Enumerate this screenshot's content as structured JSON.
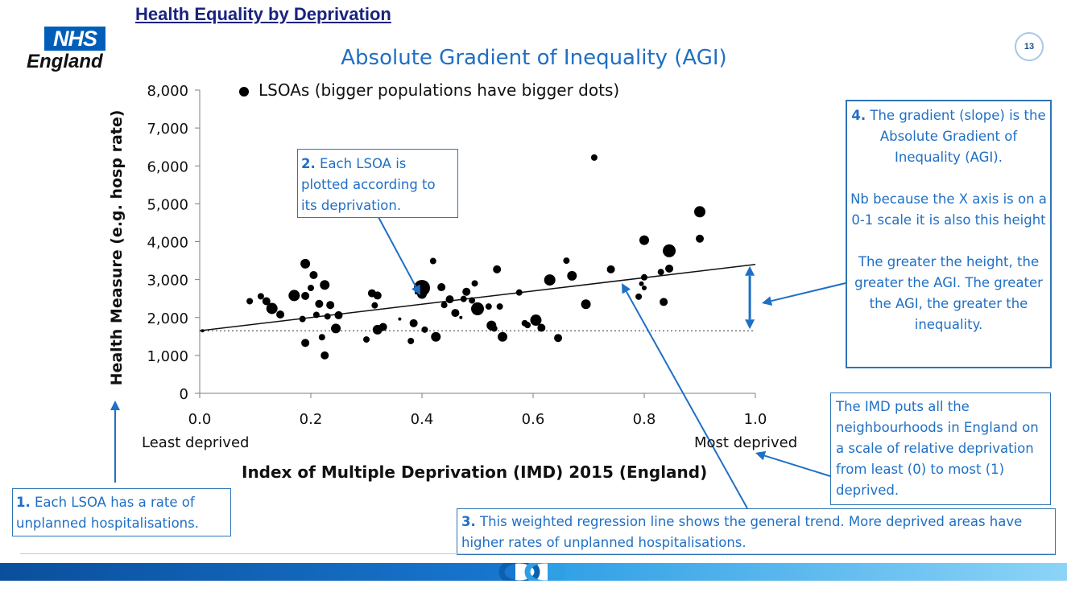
{
  "header": {
    "title": "Health Equality by Deprivation"
  },
  "logo": {
    "box_text": "NHS",
    "subtitle": "England",
    "color": "#005eb8"
  },
  "page_number": "13",
  "chart_data": {
    "type": "scatter",
    "title": "Absolute Gradient of Inequality (AGI)",
    "xlabel": "Index of Multiple Deprivation (IMD) 2015 (England)",
    "ylabel": "Health Measure (e.g. hosp rate)",
    "x_end_labels": {
      "left": "Least deprived",
      "right": "Most deprived"
    },
    "xlim": [
      0,
      1
    ],
    "ylim": [
      0,
      8000
    ],
    "x_ticks": [
      "0.0",
      "0.2",
      "0.4",
      "0.6",
      "0.8",
      "1.0"
    ],
    "y_ticks": [
      "0",
      "1,000",
      "2,000",
      "3,000",
      "4,000",
      "5,000",
      "6,000",
      "7,000",
      "8,000"
    ],
    "legend": {
      "label": "LSOAs (bigger populations have bigger dots)",
      "position": "top-left"
    },
    "regression": {
      "intercept": 1650,
      "slope": 1750,
      "label": "weighted regression line"
    },
    "baseline": {
      "y": 1650,
      "style": "dotted"
    },
    "agi_marker": {
      "x": 0.99,
      "from": 1650,
      "to": 3400,
      "color": "#1f6fc5"
    },
    "points": [
      {
        "x": 0.005,
        "y": 1650,
        "r": 2
      },
      {
        "x": 0.09,
        "y": 2430,
        "r": 4
      },
      {
        "x": 0.11,
        "y": 2560,
        "r": 4
      },
      {
        "x": 0.12,
        "y": 2430,
        "r": 5
      },
      {
        "x": 0.13,
        "y": 2240,
        "r": 7
      },
      {
        "x": 0.145,
        "y": 2080,
        "r": 5
      },
      {
        "x": 0.17,
        "y": 2580,
        "r": 7
      },
      {
        "x": 0.185,
        "y": 1960,
        "r": 4
      },
      {
        "x": 0.19,
        "y": 3420,
        "r": 6
      },
      {
        "x": 0.19,
        "y": 2570,
        "r": 5
      },
      {
        "x": 0.19,
        "y": 1330,
        "r": 5
      },
      {
        "x": 0.2,
        "y": 2780,
        "r": 4
      },
      {
        "x": 0.205,
        "y": 3120,
        "r": 5
      },
      {
        "x": 0.21,
        "y": 2070,
        "r": 4
      },
      {
        "x": 0.215,
        "y": 2360,
        "r": 5
      },
      {
        "x": 0.22,
        "y": 1480,
        "r": 4
      },
      {
        "x": 0.225,
        "y": 2860,
        "r": 6
      },
      {
        "x": 0.225,
        "y": 1000,
        "r": 5
      },
      {
        "x": 0.23,
        "y": 2030,
        "r": 4
      },
      {
        "x": 0.235,
        "y": 2330,
        "r": 5
      },
      {
        "x": 0.245,
        "y": 1710,
        "r": 6
      },
      {
        "x": 0.25,
        "y": 2060,
        "r": 5
      },
      {
        "x": 0.3,
        "y": 1420,
        "r": 4
      },
      {
        "x": 0.31,
        "y": 2640,
        "r": 5
      },
      {
        "x": 0.315,
        "y": 2320,
        "r": 4
      },
      {
        "x": 0.32,
        "y": 2580,
        "r": 5
      },
      {
        "x": 0.32,
        "y": 1680,
        "r": 6
      },
      {
        "x": 0.33,
        "y": 1750,
        "r": 5
      },
      {
        "x": 0.36,
        "y": 1960,
        "r": 2
      },
      {
        "x": 0.38,
        "y": 1380,
        "r": 4
      },
      {
        "x": 0.385,
        "y": 1850,
        "r": 5
      },
      {
        "x": 0.39,
        "y": 2650,
        "r": 2
      },
      {
        "x": 0.4,
        "y": 2780,
        "r": 10
      },
      {
        "x": 0.4,
        "y": 2620,
        "r": 6
      },
      {
        "x": 0.405,
        "y": 1680,
        "r": 4
      },
      {
        "x": 0.42,
        "y": 3490,
        "r": 4
      },
      {
        "x": 0.425,
        "y": 1490,
        "r": 6
      },
      {
        "x": 0.435,
        "y": 2800,
        "r": 5
      },
      {
        "x": 0.44,
        "y": 2330,
        "r": 4
      },
      {
        "x": 0.45,
        "y": 2480,
        "r": 5
      },
      {
        "x": 0.46,
        "y": 2120,
        "r": 5
      },
      {
        "x": 0.47,
        "y": 2000,
        "r": 2
      },
      {
        "x": 0.475,
        "y": 2490,
        "r": 4
      },
      {
        "x": 0.48,
        "y": 2680,
        "r": 5
      },
      {
        "x": 0.49,
        "y": 2450,
        "r": 4
      },
      {
        "x": 0.495,
        "y": 2900,
        "r": 4
      },
      {
        "x": 0.5,
        "y": 2230,
        "r": 8
      },
      {
        "x": 0.52,
        "y": 2290,
        "r": 4
      },
      {
        "x": 0.525,
        "y": 1790,
        "r": 6
      },
      {
        "x": 0.53,
        "y": 1710,
        "r": 4
      },
      {
        "x": 0.535,
        "y": 3270,
        "r": 5
      },
      {
        "x": 0.54,
        "y": 2290,
        "r": 4
      },
      {
        "x": 0.545,
        "y": 1490,
        "r": 6
      },
      {
        "x": 0.575,
        "y": 2660,
        "r": 4
      },
      {
        "x": 0.585,
        "y": 1850,
        "r": 4
      },
      {
        "x": 0.59,
        "y": 1800,
        "r": 4
      },
      {
        "x": 0.605,
        "y": 1930,
        "r": 7
      },
      {
        "x": 0.615,
        "y": 1730,
        "r": 5
      },
      {
        "x": 0.63,
        "y": 2990,
        "r": 7
      },
      {
        "x": 0.645,
        "y": 1460,
        "r": 5
      },
      {
        "x": 0.66,
        "y": 3500,
        "r": 4
      },
      {
        "x": 0.67,
        "y": 3100,
        "r": 6
      },
      {
        "x": 0.695,
        "y": 2350,
        "r": 6
      },
      {
        "x": 0.71,
        "y": 6220,
        "r": 4
      },
      {
        "x": 0.74,
        "y": 3270,
        "r": 5
      },
      {
        "x": 0.79,
        "y": 2550,
        "r": 4
      },
      {
        "x": 0.795,
        "y": 2890,
        "r": 3
      },
      {
        "x": 0.8,
        "y": 4040,
        "r": 6
      },
      {
        "x": 0.8,
        "y": 2780,
        "r": 3
      },
      {
        "x": 0.8,
        "y": 3060,
        "r": 4
      },
      {
        "x": 0.83,
        "y": 3200,
        "r": 4
      },
      {
        "x": 0.835,
        "y": 2410,
        "r": 5
      },
      {
        "x": 0.845,
        "y": 3760,
        "r": 8
      },
      {
        "x": 0.845,
        "y": 3290,
        "r": 5
      },
      {
        "x": 0.9,
        "y": 4790,
        "r": 7
      },
      {
        "x": 0.9,
        "y": 4080,
        "r": 5
      }
    ]
  },
  "notes": {
    "n1": {
      "num": "1.",
      "text": " Each LSOA has a rate of unplanned hospitalisations."
    },
    "n2": {
      "num": "2.",
      "text": " Each LSOA is plotted according to its deprivation."
    },
    "n3": {
      "num": "3.",
      "text": " This weighted regression line shows the general trend. More deprived areas have higher rates of unplanned hospitalisations."
    },
    "n4": {
      "num": "4.",
      "p1": " The gradient (slope)  is the Absolute Gradient of Inequality (AGI).",
      "p2": "Nb because the X axis is on a 0-1 scale it is also this height",
      "p3": "The greater the height, the greater the AGI. The greater the AGI, the greater the inequality."
    },
    "imd": {
      "text": "The IMD puts all the neighbourhoods in England on a scale of relative deprivation from least (0) to most (1) deprived."
    }
  },
  "colors": {
    "accent": "#1f6fc5",
    "border": "#2e75b6",
    "header": "#1a237e",
    "footer_dark": "#0d5fb0",
    "footer_light": "#3aa8e8"
  }
}
